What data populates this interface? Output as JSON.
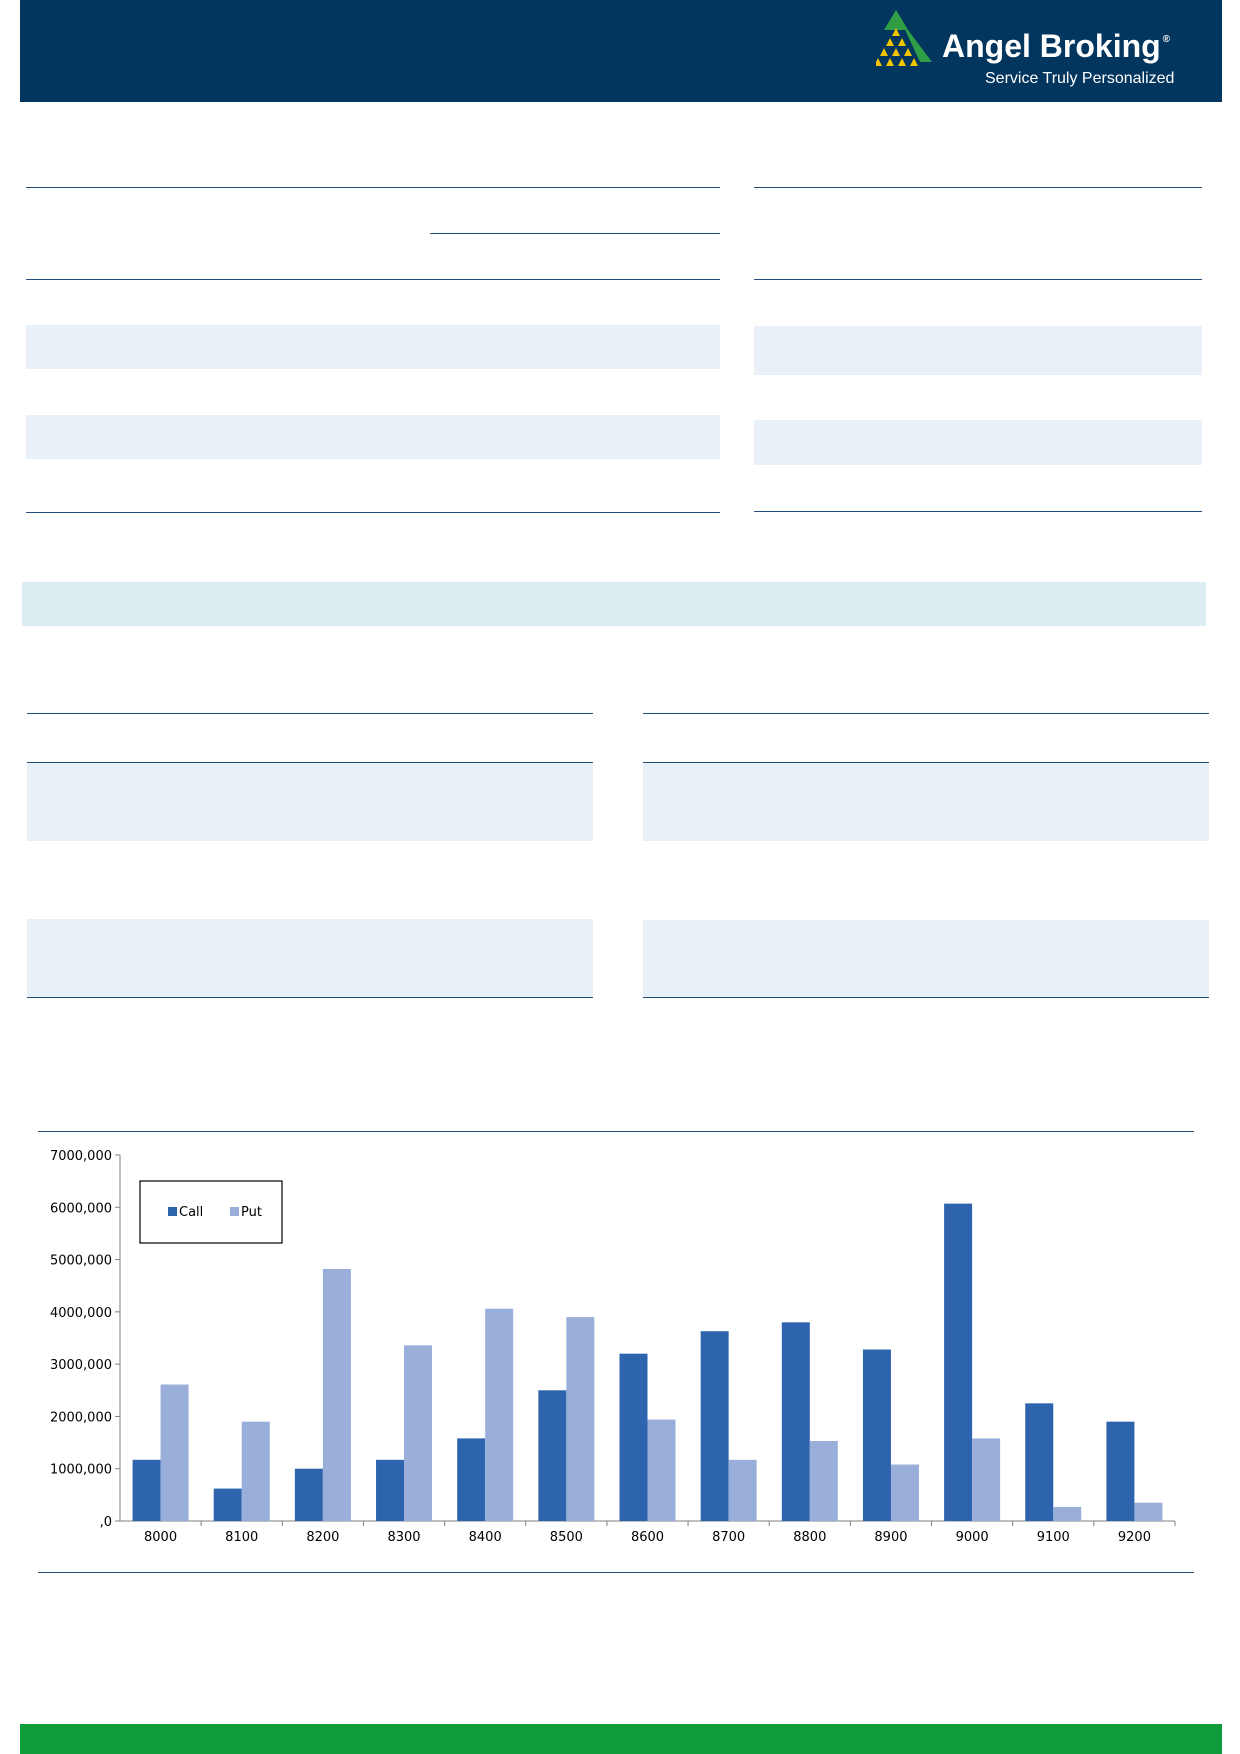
{
  "brand": {
    "name": "Angel Broking",
    "registered_mark": "®",
    "tagline": "Service Truly Personalized",
    "colors": {
      "header": "#03365e",
      "accent_green": "#0f9b3a",
      "logo_yellow": "#f2c400",
      "logo_green": "#2f9e44"
    }
  },
  "chart_data": {
    "type": "bar",
    "categories": [
      "8000",
      "8100",
      "8200",
      "8300",
      "8400",
      "8500",
      "8600",
      "8700",
      "8800",
      "8900",
      "9000",
      "9100",
      "9200"
    ],
    "series": [
      {
        "name": "Call",
        "color": "#2e64ad",
        "values": [
          1170000,
          620000,
          1000000,
          1170000,
          1580000,
          2500000,
          3200000,
          3630000,
          3800000,
          3280000,
          6070000,
          2250000,
          1900000
        ]
      },
      {
        "name": "Put",
        "color": "#99aed9",
        "values": [
          2610000,
          1900000,
          4820000,
          3360000,
          4060000,
          3900000,
          1940000,
          1170000,
          1530000,
          1080000,
          1580000,
          270000,
          350000
        ]
      }
    ],
    "yticks": [
      ",0",
      "1000,000",
      "2000,000",
      "3000,000",
      "4000,000",
      "5000,000",
      "6000,000",
      "7000,000"
    ],
    "ylim": [
      0,
      7000000
    ],
    "legend_position": "top-left",
    "grid": false
  }
}
